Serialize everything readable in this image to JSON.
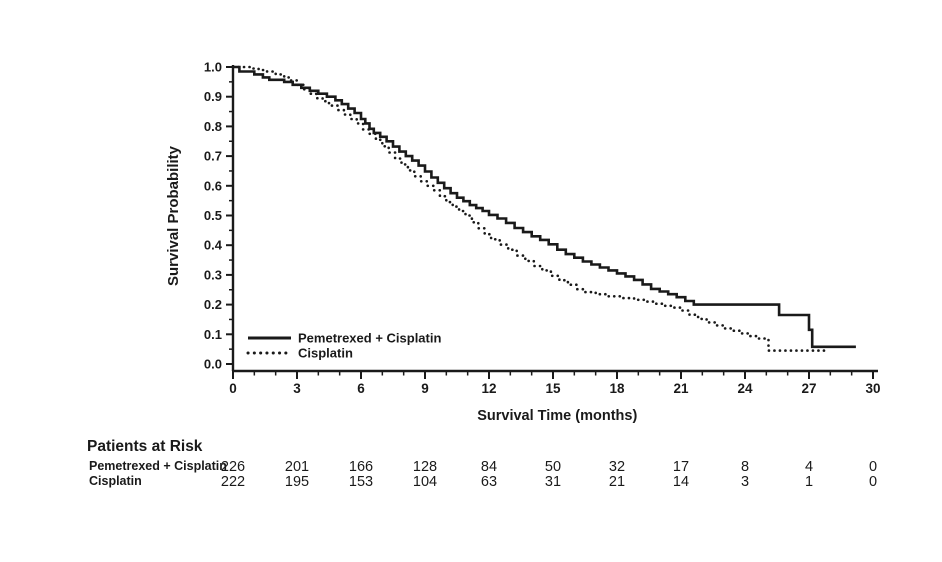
{
  "chart_data": {
    "type": "line",
    "subtype": "kaplan-meier-step",
    "title": "",
    "xlabel": "Survival Time (months)",
    "ylabel": "Survival Probability",
    "xlim": [
      0,
      30
    ],
    "ylim": [
      0.0,
      1.0
    ],
    "grid": false,
    "x_major_ticks": [
      0,
      3,
      6,
      9,
      12,
      15,
      18,
      21,
      24,
      27,
      30
    ],
    "x_tick_labels": [
      "0",
      "3",
      "6",
      "9",
      "12",
      "15",
      "18",
      "21",
      "24",
      "27",
      "30"
    ],
    "x_minor_step": 1,
    "y_major_ticks": [
      0.0,
      0.1,
      0.2,
      0.3,
      0.4,
      0.5,
      0.6,
      0.7,
      0.8,
      0.9,
      1.0
    ],
    "y_tick_labels": [
      "0.0",
      "0.1",
      "0.2",
      "0.3",
      "0.4",
      "0.5",
      "0.6",
      "0.7",
      "0.8",
      "0.9",
      "1.0"
    ],
    "y_minor_step": 0.05,
    "line_color": "#1a1a1a",
    "legend_position": "inside-bottom-left",
    "series": [
      {
        "name": "Pemetrexed + Cisplatin",
        "style": "solid",
        "color": "#1a1a1a",
        "points": [
          [
            0,
            1.0
          ],
          [
            0.3,
            0.985
          ],
          [
            1.0,
            0.975
          ],
          [
            1.4,
            0.965
          ],
          [
            1.7,
            0.957
          ],
          [
            2.4,
            0.95
          ],
          [
            2.8,
            0.94
          ],
          [
            3.2,
            0.93
          ],
          [
            3.6,
            0.92
          ],
          [
            4.0,
            0.91
          ],
          [
            4.4,
            0.9
          ],
          [
            4.8,
            0.888
          ],
          [
            5.1,
            0.875
          ],
          [
            5.4,
            0.86
          ],
          [
            5.7,
            0.845
          ],
          [
            6.0,
            0.825
          ],
          [
            6.2,
            0.81
          ],
          [
            6.4,
            0.792
          ],
          [
            6.6,
            0.778
          ],
          [
            6.9,
            0.765
          ],
          [
            7.2,
            0.75
          ],
          [
            7.5,
            0.732
          ],
          [
            7.8,
            0.715
          ],
          [
            8.1,
            0.7
          ],
          [
            8.4,
            0.685
          ],
          [
            8.7,
            0.668
          ],
          [
            9.0,
            0.648
          ],
          [
            9.3,
            0.628
          ],
          [
            9.6,
            0.61
          ],
          [
            9.9,
            0.592
          ],
          [
            10.2,
            0.575
          ],
          [
            10.5,
            0.56
          ],
          [
            10.8,
            0.548
          ],
          [
            11.1,
            0.535
          ],
          [
            11.4,
            0.525
          ],
          [
            11.7,
            0.515
          ],
          [
            12.0,
            0.502
          ],
          [
            12.4,
            0.49
          ],
          [
            12.8,
            0.475
          ],
          [
            13.2,
            0.458
          ],
          [
            13.6,
            0.444
          ],
          [
            14.0,
            0.43
          ],
          [
            14.4,
            0.418
          ],
          [
            14.8,
            0.403
          ],
          [
            15.2,
            0.385
          ],
          [
            15.6,
            0.37
          ],
          [
            16.0,
            0.358
          ],
          [
            16.4,
            0.345
          ],
          [
            16.8,
            0.335
          ],
          [
            17.2,
            0.325
          ],
          [
            17.6,
            0.315
          ],
          [
            18.0,
            0.305
          ],
          [
            18.4,
            0.295
          ],
          [
            18.8,
            0.283
          ],
          [
            19.2,
            0.268
          ],
          [
            19.6,
            0.253
          ],
          [
            20.0,
            0.244
          ],
          [
            20.4,
            0.235
          ],
          [
            20.8,
            0.225
          ],
          [
            21.2,
            0.212
          ],
          [
            21.6,
            0.2
          ],
          [
            25.6,
            0.165
          ],
          [
            27.0,
            0.115
          ],
          [
            27.15,
            0.058
          ],
          [
            29.2,
            0.058
          ]
        ]
      },
      {
        "name": "Cisplatin",
        "style": "dotted",
        "color": "#1a1a1a",
        "points": [
          [
            0,
            1.0
          ],
          [
            0.8,
            0.995
          ],
          [
            1.2,
            0.99
          ],
          [
            1.6,
            0.985
          ],
          [
            2.0,
            0.975
          ],
          [
            2.4,
            0.965
          ],
          [
            2.7,
            0.955
          ],
          [
            3.0,
            0.94
          ],
          [
            3.3,
            0.925
          ],
          [
            3.6,
            0.91
          ],
          [
            3.9,
            0.895
          ],
          [
            4.2,
            0.885
          ],
          [
            4.5,
            0.87
          ],
          [
            4.9,
            0.855
          ],
          [
            5.2,
            0.84
          ],
          [
            5.5,
            0.825
          ],
          [
            5.8,
            0.81
          ],
          [
            6.1,
            0.79
          ],
          [
            6.4,
            0.775
          ],
          [
            6.7,
            0.755
          ],
          [
            7.0,
            0.733
          ],
          [
            7.3,
            0.712
          ],
          [
            7.6,
            0.692
          ],
          [
            7.9,
            0.672
          ],
          [
            8.2,
            0.652
          ],
          [
            8.5,
            0.632
          ],
          [
            8.8,
            0.615
          ],
          [
            9.1,
            0.6
          ],
          [
            9.4,
            0.585
          ],
          [
            9.7,
            0.565
          ],
          [
            10.0,
            0.545
          ],
          [
            10.3,
            0.53
          ],
          [
            10.6,
            0.515
          ],
          [
            10.9,
            0.5
          ],
          [
            11.2,
            0.477
          ],
          [
            11.5,
            0.457
          ],
          [
            11.8,
            0.437
          ],
          [
            12.1,
            0.42
          ],
          [
            12.5,
            0.402
          ],
          [
            12.9,
            0.385
          ],
          [
            13.3,
            0.365
          ],
          [
            13.7,
            0.347
          ],
          [
            14.1,
            0.33
          ],
          [
            14.5,
            0.315
          ],
          [
            14.9,
            0.297
          ],
          [
            15.3,
            0.282
          ],
          [
            15.7,
            0.267
          ],
          [
            16.1,
            0.252
          ],
          [
            16.5,
            0.242
          ],
          [
            17.0,
            0.235
          ],
          [
            17.6,
            0.228
          ],
          [
            18.2,
            0.222
          ],
          [
            18.8,
            0.216
          ],
          [
            19.4,
            0.21
          ],
          [
            19.8,
            0.203
          ],
          [
            20.2,
            0.196
          ],
          [
            20.6,
            0.19
          ],
          [
            21.0,
            0.18
          ],
          [
            21.4,
            0.166
          ],
          [
            21.8,
            0.152
          ],
          [
            22.2,
            0.14
          ],
          [
            22.6,
            0.13
          ],
          [
            23.0,
            0.12
          ],
          [
            23.4,
            0.112
          ],
          [
            23.8,
            0.103
          ],
          [
            24.2,
            0.094
          ],
          [
            24.6,
            0.086
          ],
          [
            25.1,
            0.045
          ],
          [
            27.9,
            0.045
          ]
        ]
      }
    ]
  },
  "risk_table": {
    "title": "Patients at Risk",
    "time_points": [
      0,
      3,
      6,
      9,
      12,
      15,
      18,
      21,
      24,
      27,
      30
    ],
    "rows": [
      {
        "label": "Pemetrexed + Cisplatin",
        "counts": [
          "226",
          "201",
          "166",
          "128",
          "84",
          "50",
          "32",
          "17",
          "8",
          "4",
          "0"
        ]
      },
      {
        "label": "Cisplatin",
        "counts": [
          "222",
          "195",
          "153",
          "104",
          "63",
          "31",
          "21",
          "14",
          "3",
          "1",
          "0"
        ]
      }
    ]
  }
}
